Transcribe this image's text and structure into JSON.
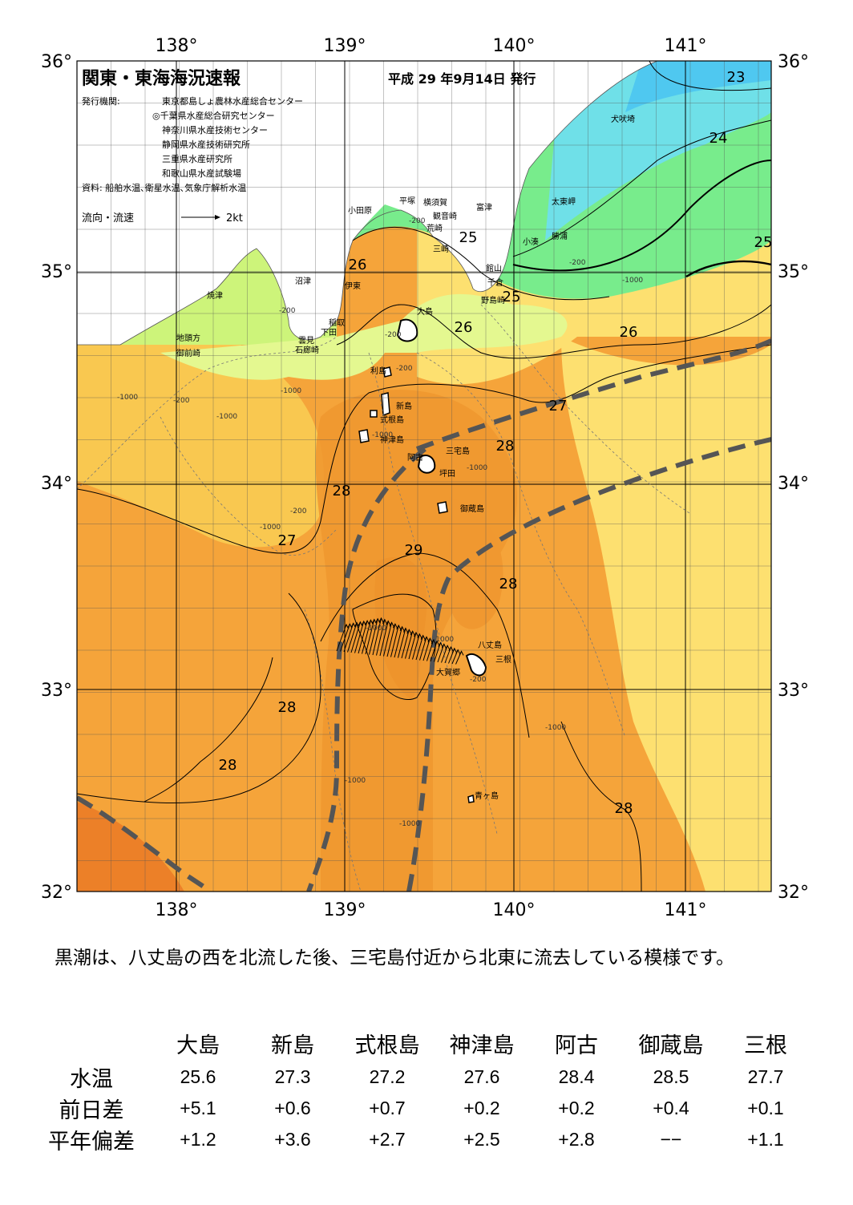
{
  "header": {
    "title": "関東・東海海況速報",
    "date": "平成 29 年9月14日 発行",
    "agencies_label": "発行機関:",
    "agencies": [
      "東京都島しょ農林水産総合センター",
      "◎千葉県水産総合研究センター",
      "神奈川県水産技術センター",
      "静岡県水産技術研究所",
      "三重県水産研究所",
      "和歌山県水産試験場"
    ],
    "sources": "資料: 船舶水温､衛星水温､気象庁解析水温",
    "flow_legend": "流向・流速",
    "flow_scale": "2kt"
  },
  "axes": {
    "lon_labels": [
      "138°",
      "139°",
      "140°",
      "141°"
    ],
    "lat_labels": [
      "36°",
      "35°",
      "34°",
      "33°",
      "32°"
    ]
  },
  "colors": {
    "t23": "#4fc8f0",
    "t24": "#6fe0e8",
    "t25": "#78ec8c",
    "t25b": "#9af08a",
    "t26": "#cdf47a",
    "t26b": "#e4f890",
    "t27": "#fde070",
    "t27b": "#f9c850",
    "t28": "#f5a43a",
    "t28b": "#f09830",
    "t29": "#ec8028",
    "t29b": "#e06d12",
    "kuroshio": "#555555"
  },
  "place_names": [
    "犬吠埼",
    "太東岬",
    "勝浦",
    "小湊",
    "富津",
    "館山",
    "千倉",
    "野島崎",
    "平塚",
    "横須賀",
    "観音崎",
    "荒崎",
    "三崎",
    "小田原",
    "沼津",
    "伊東",
    "稲取",
    "下田",
    "雲見",
    "石廊崎",
    "焼津",
    "地頭方",
    "御前崎",
    "大島",
    "利島",
    "新島",
    "式根島",
    "神津島",
    "阿古",
    "三宅島",
    "坪田",
    "御蔵島",
    "八丈島",
    "三根",
    "大賀郷",
    "青ヶ島"
  ],
  "isotherm_labels": [
    "23",
    "24",
    "25",
    "25",
    "25",
    "25",
    "26",
    "26",
    "26",
    "27",
    "27",
    "28",
    "28",
    "28",
    "28",
    "28",
    "28",
    "29"
  ],
  "depth_labels": [
    "-200",
    "-200",
    "-1000",
    "-200",
    "-200",
    "-1000",
    "-1000",
    "-200",
    "-1000",
    "-200",
    "-1000",
    "-1000",
    "-1000",
    "-200",
    "-1000",
    "-200",
    "-1000",
    "-1000",
    "-1000",
    "-1000"
  ],
  "summary": "黒潮は、八丈島の西を北流した後、三宅島付近から北東に流去している模様です。",
  "table": {
    "columns": [
      "大島",
      "新島",
      "式根島",
      "神津島",
      "阿古",
      "御蔵島",
      "三根"
    ],
    "rows": [
      {
        "label": "水温",
        "values": [
          "25.6",
          "27.3",
          "27.2",
          "27.6",
          "28.4",
          "28.5",
          "27.7"
        ]
      },
      {
        "label": "前日差",
        "values": [
          "+5.1",
          "+0.6",
          "+0.7",
          "+0.2",
          "+0.2",
          "+0.4",
          "+0.1"
        ]
      },
      {
        "label": "平年偏差",
        "values": [
          "+1.2",
          "+3.6",
          "+2.7",
          "+2.5",
          "+2.8",
          "−−",
          "+1.1"
        ]
      }
    ]
  }
}
